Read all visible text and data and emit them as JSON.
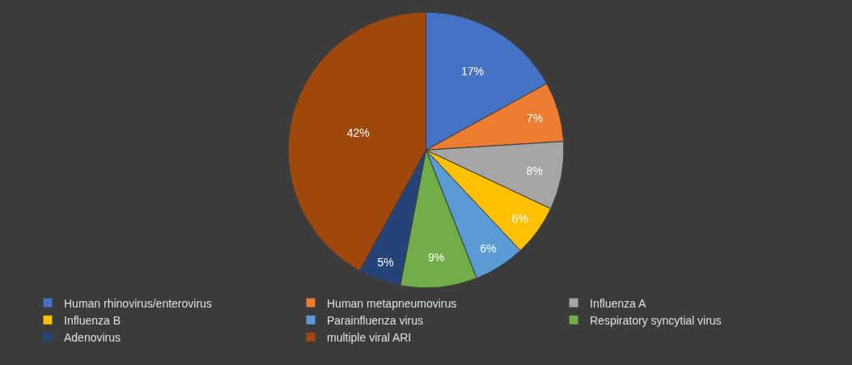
{
  "chart_data": {
    "type": "pie",
    "categories": [
      "Human rhinovirus/enterovirus",
      "Human metapneumovirus",
      "Influenza A",
      "Influenza B",
      "Parainfluenza virus",
      "Respiratory syncytial virus",
      "Adenovirus",
      "multiple viral ARI"
    ],
    "values": [
      17,
      7,
      8,
      6,
      6,
      9,
      5,
      42
    ],
    "value_labels": [
      "17%",
      "7%",
      "8%",
      "6%",
      "6%",
      "9%",
      "5%",
      "42%"
    ],
    "colors": [
      "#4472c4",
      "#ed7d31",
      "#a5a5a5",
      "#ffc000",
      "#5b9bd5",
      "#70ad47",
      "#264478",
      "#9e480e"
    ],
    "legend": "bottom"
  }
}
